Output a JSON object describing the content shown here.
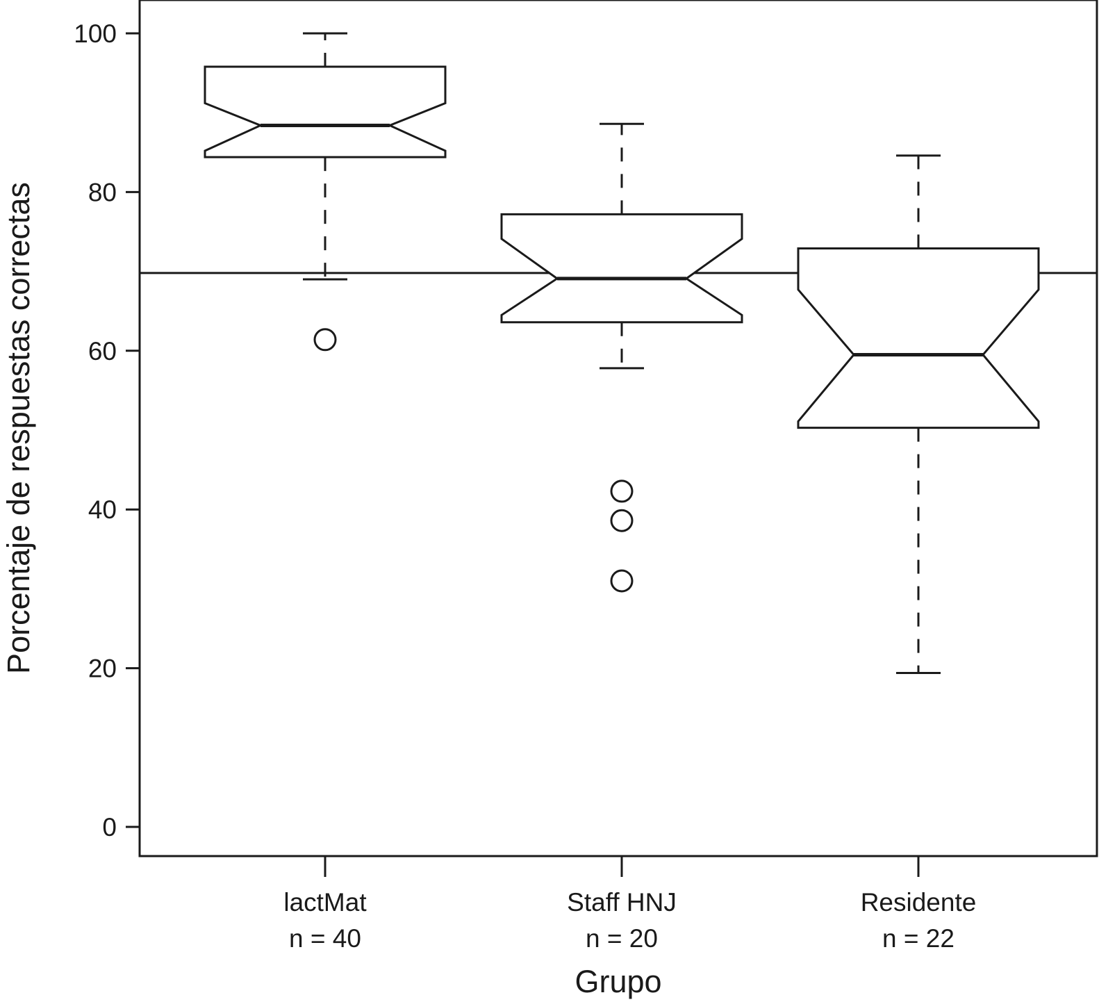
{
  "chart_data": {
    "type": "boxplot",
    "notched": true,
    "xlabel": "Grupo",
    "ylabel": "Porcentaje de respuestas correctas",
    "ylim": [
      -3.7,
      104.2
    ],
    "yticks": [
      0,
      20,
      40,
      60,
      80,
      100
    ],
    "yticks_labels": [
      "0",
      "20",
      "40",
      "60",
      "80",
      "100"
    ],
    "grid": false,
    "reference_line": {
      "y": 69.8
    },
    "color": "#1a1a1a",
    "categories": [
      {
        "name": "lactMat",
        "n_label": "n = 40",
        "whisker_low": 69,
        "q1": 84.4,
        "median": 88.4,
        "q3": 95.8,
        "whisker_high": 100,
        "notch_low": 85.2,
        "notch_high": 91.2,
        "outliers": [
          61.4
        ]
      },
      {
        "name": "Staff HNJ",
        "n_label": "n = 20",
        "whisker_low": 57.8,
        "q1": 63.6,
        "median": 69.1,
        "q3": 77.2,
        "whisker_high": 88.6,
        "notch_low": 64.5,
        "notch_high": 74.1,
        "outliers": [
          42.3,
          38.6,
          31.0
        ]
      },
      {
        "name": "Residente",
        "n_label": "n = 22",
        "whisker_low": 19.4,
        "q1": 50.3,
        "median": 59.5,
        "q3": 72.9,
        "whisker_high": 84.6,
        "notch_low": 51.1,
        "notch_high": 67.7,
        "outliers": []
      }
    ]
  }
}
